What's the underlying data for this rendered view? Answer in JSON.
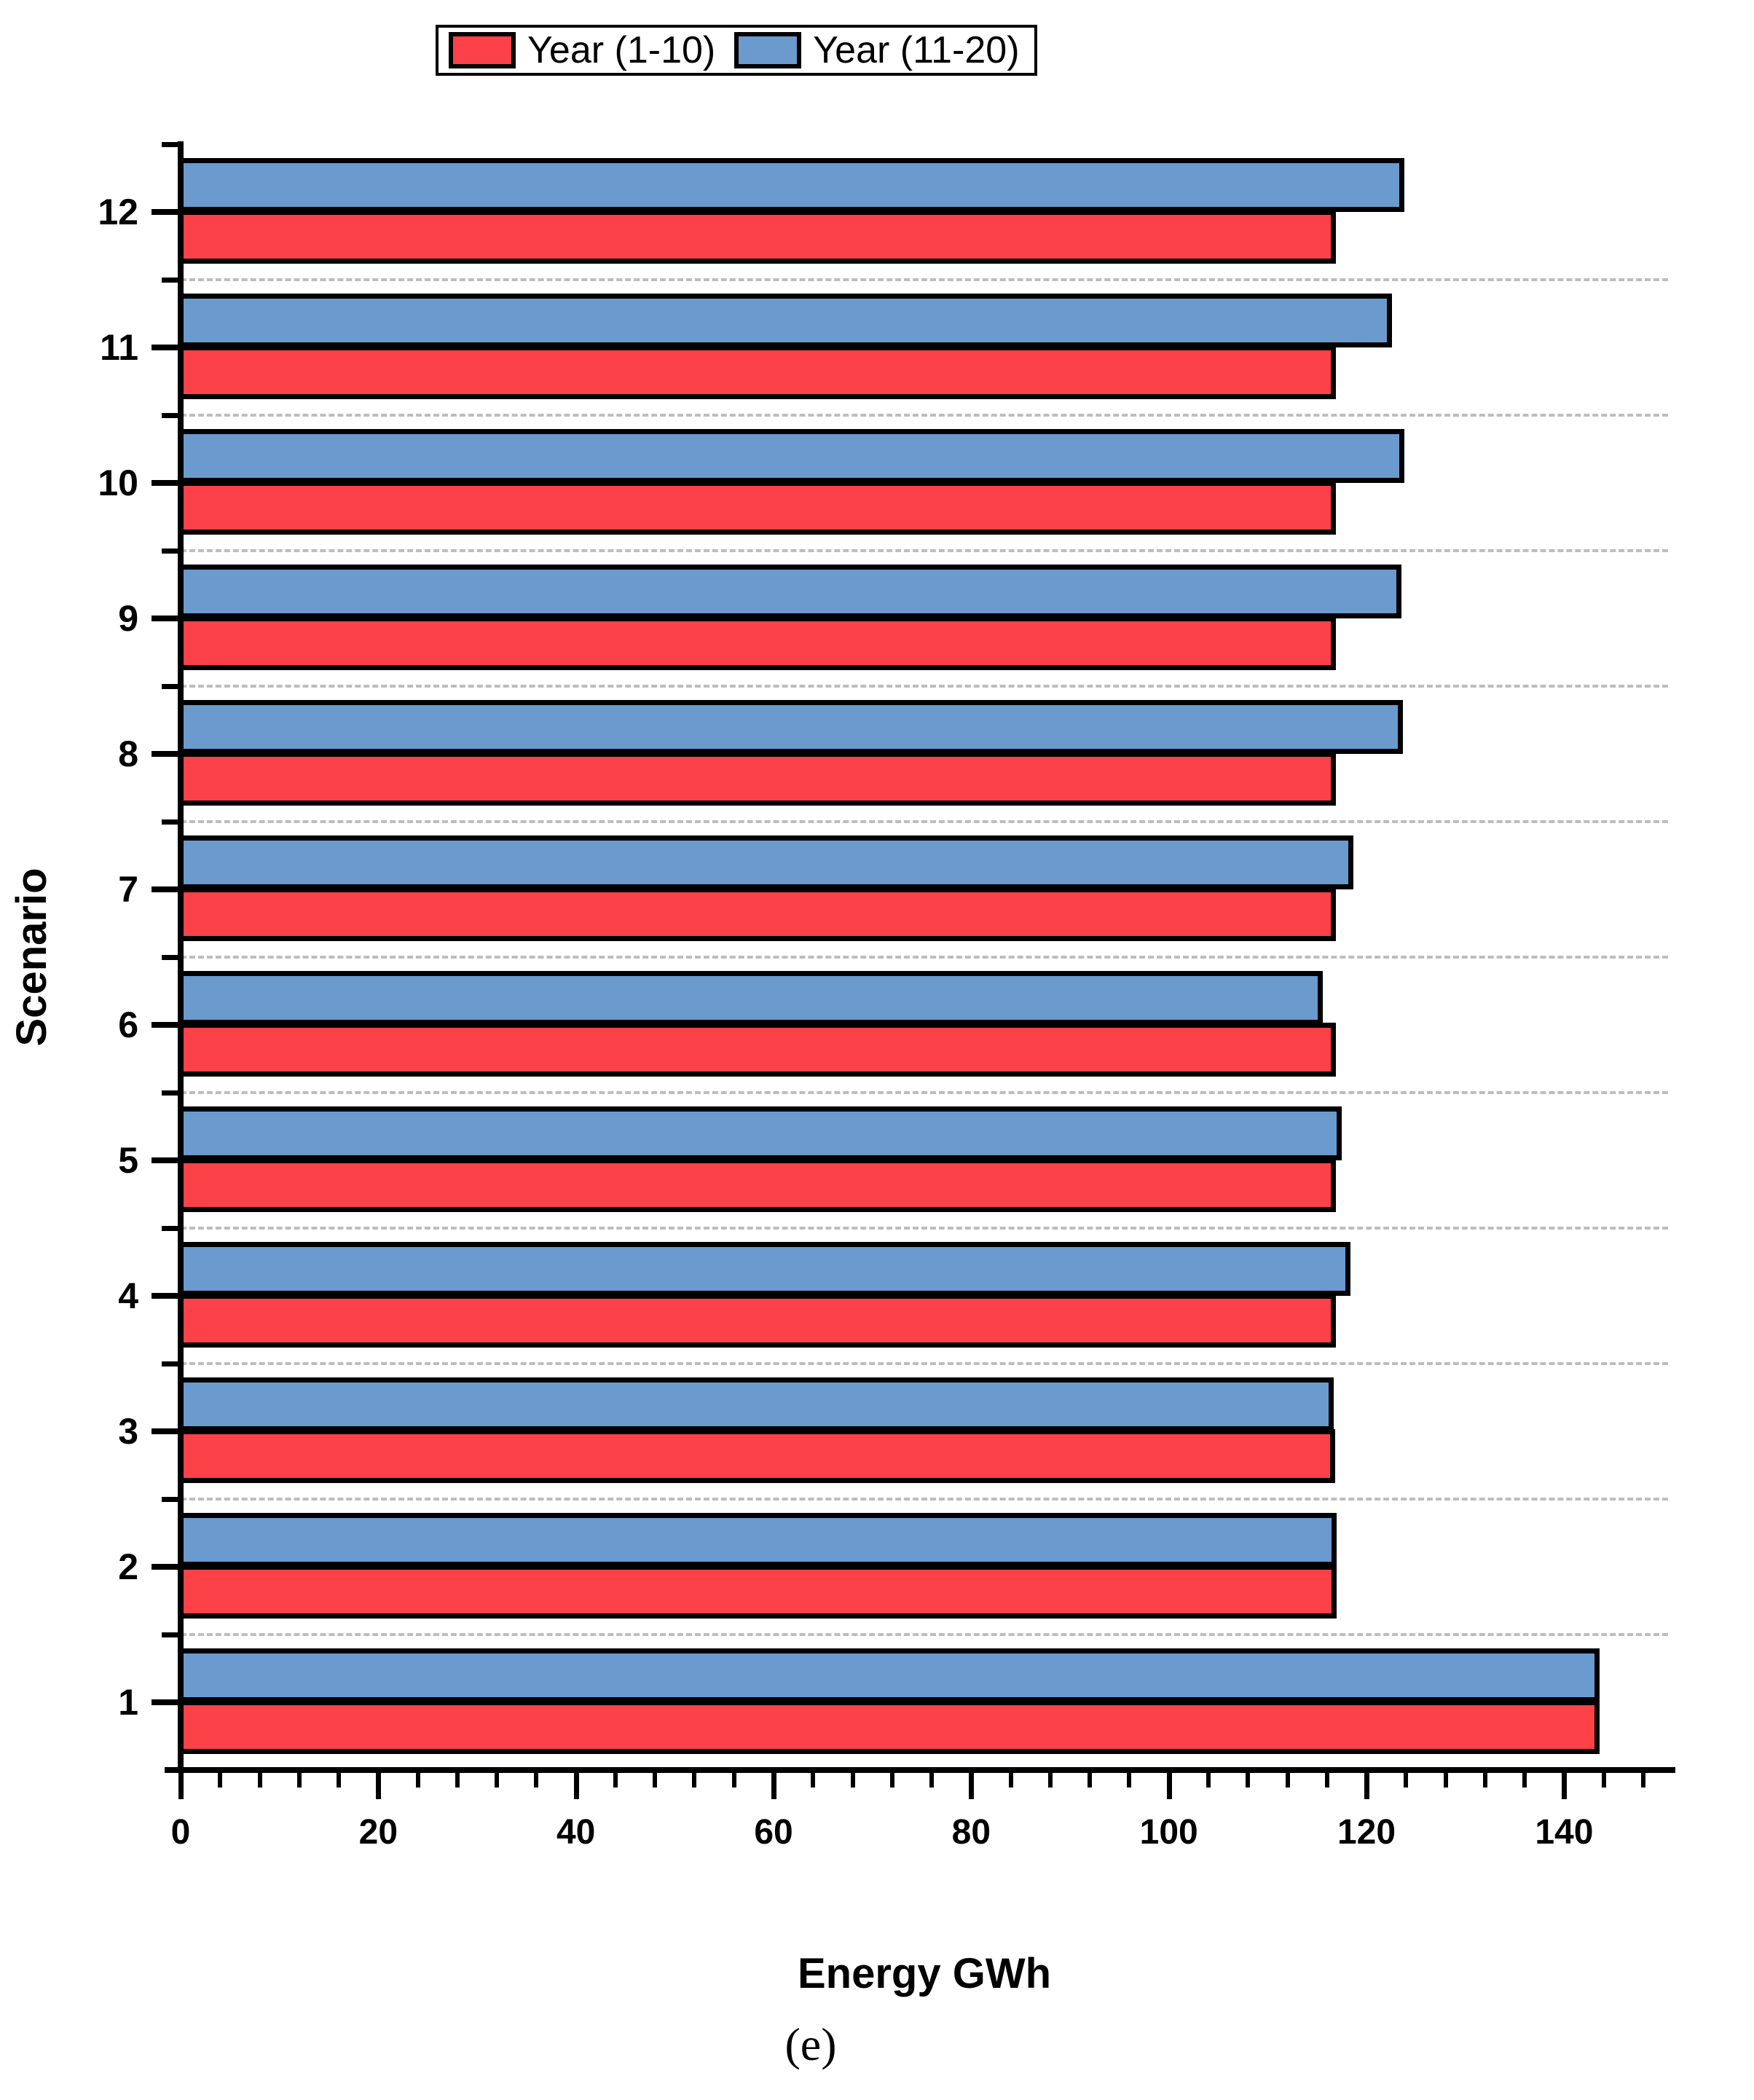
{
  "legend": {
    "items": [
      {
        "label": "Year (1-10)",
        "color": "#FC4149",
        "swatch_name": "legend-swatch-red"
      },
      {
        "label": "Year (11-20)",
        "color": "#6A9ACE",
        "swatch_name": "legend-swatch-blue"
      }
    ]
  },
  "axes": {
    "x_title": "Energy GWh",
    "y_title": "Scenario",
    "x_tick_labels": [
      "0",
      "20",
      "40",
      "60",
      "80",
      "100",
      "120",
      "140"
    ],
    "y_tick_labels": [
      "1",
      "2",
      "3",
      "4",
      "5",
      "6",
      "7",
      "8",
      "9",
      "10",
      "11",
      "12"
    ]
  },
  "caption": "(e)",
  "colors": {
    "red_series": "#FC4149",
    "blue_series": "#6A9ACE",
    "bar_stroke": "#000000",
    "gridline": "#bdbdbd"
  },
  "chart_data": {
    "type": "bar",
    "orientation": "horizontal",
    "title": "",
    "xlabel": "Energy GWh",
    "ylabel": "Scenario",
    "categories": [
      1,
      2,
      3,
      4,
      5,
      6,
      7,
      8,
      9,
      10,
      11,
      12
    ],
    "series": [
      {
        "name": "Year (1-10)",
        "color": "#FC4149",
        "values": [
          143.6,
          117.0,
          116.8,
          116.9,
          116.9,
          116.9,
          116.9,
          116.9,
          116.9,
          116.9,
          116.9,
          116.9
        ]
      },
      {
        "name": "Year (11-20)",
        "color": "#6A9ACE",
        "values": [
          143.6,
          117.0,
          116.7,
          118.4,
          117.5,
          115.6,
          118.7,
          123.7,
          123.5,
          123.8,
          122.6,
          123.8
        ]
      }
    ],
    "xlim": [
      0,
      150.5
    ],
    "x_major_step": 20,
    "x_minor_step": 4,
    "grid": "category-boundaries-dashed",
    "legend_position": "top-center"
  }
}
